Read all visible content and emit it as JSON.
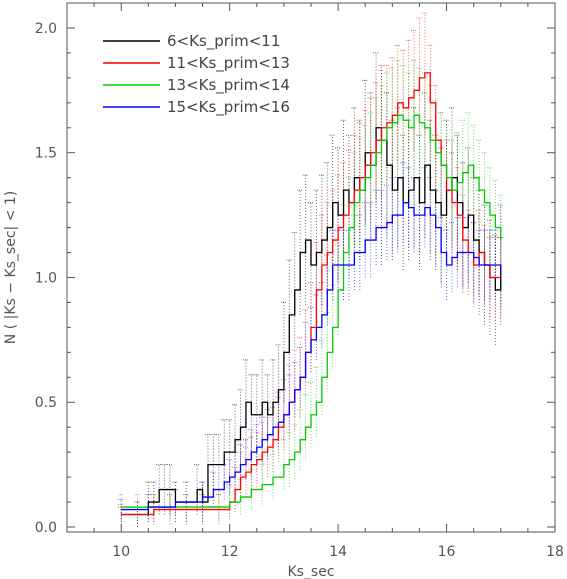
{
  "chart_data": {
    "type": "line",
    "title": "",
    "xlabel": "Ks_sec",
    "ylabel": "N ( |Ks − Ks_sec| < 1)",
    "xlim": [
      9,
      18
    ],
    "ylim": [
      -0.02,
      2.1
    ],
    "xticks": [
      10,
      12,
      14,
      16,
      18
    ],
    "xtick_labels": [
      "10",
      "12",
      "14",
      "16",
      "18"
    ],
    "yticks": [
      0.0,
      0.5,
      1.0,
      1.5,
      2.0
    ],
    "ytick_labels": [
      "0.0",
      "0.5",
      "1.0",
      "1.5",
      "2.0"
    ],
    "grid": false,
    "legend_position": "top-left",
    "error_bars": "dotted vertical bars",
    "series": [
      {
        "name": "6<Ks_prim<11",
        "color": "#000000",
        "x": [
          10.0,
          10.3,
          10.5,
          10.6,
          10.7,
          10.8,
          10.9,
          11.0,
          11.2,
          11.4,
          11.5,
          11.6,
          11.7,
          11.8,
          11.9,
          12.0,
          12.1,
          12.2,
          12.3,
          12.4,
          12.5,
          12.6,
          12.7,
          12.8,
          12.9,
          13.0,
          13.1,
          13.2,
          13.3,
          13.4,
          13.5,
          13.6,
          13.7,
          13.8,
          13.9,
          14.0,
          14.1,
          14.2,
          14.3,
          14.4,
          14.5,
          14.6,
          14.7,
          14.8,
          14.9,
          15.0,
          15.1,
          15.2,
          15.3,
          15.4,
          15.5,
          15.6,
          15.7,
          15.8,
          15.9,
          16.0,
          16.1,
          16.2,
          16.3,
          16.4,
          16.5,
          16.6,
          16.7,
          16.8,
          16.9,
          17.0
        ],
        "values": [
          0.05,
          0.05,
          0.1,
          0.1,
          0.15,
          0.15,
          0.15,
          0.1,
          0.1,
          0.15,
          0.1,
          0.25,
          0.25,
          0.25,
          0.3,
          0.3,
          0.35,
          0.4,
          0.5,
          0.45,
          0.45,
          0.5,
          0.45,
          0.5,
          0.55,
          0.7,
          0.85,
          0.95,
          1.1,
          1.15,
          1.05,
          1.1,
          1.15,
          1.2,
          1.3,
          1.25,
          1.35,
          1.3,
          1.4,
          1.35,
          1.5,
          1.45,
          1.6,
          1.55,
          1.45,
          1.35,
          1.4,
          1.3,
          1.35,
          1.4,
          1.3,
          1.45,
          1.35,
          1.3,
          1.25,
          1.35,
          1.4,
          1.3,
          1.2,
          1.25,
          1.15,
          1.1,
          1.05,
          1.0,
          0.95,
          1.05
        ],
        "errors": [
          0.03,
          0.05,
          0.08,
          0.08,
          0.1,
          0.1,
          0.1,
          0.08,
          0.08,
          0.1,
          0.08,
          0.12,
          0.12,
          0.12,
          0.13,
          0.13,
          0.14,
          0.15,
          0.17,
          0.16,
          0.16,
          0.17,
          0.16,
          0.17,
          0.18,
          0.2,
          0.22,
          0.23,
          0.25,
          0.26,
          0.25,
          0.25,
          0.26,
          0.26,
          0.27,
          0.27,
          0.28,
          0.27,
          0.28,
          0.28,
          0.29,
          0.29,
          0.3,
          0.3,
          0.29,
          0.28,
          0.28,
          0.27,
          0.28,
          0.28,
          0.27,
          0.29,
          0.28,
          0.27,
          0.27,
          0.28,
          0.28,
          0.27,
          0.26,
          0.27,
          0.25,
          0.25,
          0.24,
          0.23,
          0.22,
          0.24
        ]
      },
      {
        "name": "11<Ks_prim<13",
        "color": "#ff0000",
        "x": [
          10.0,
          10.3,
          10.6,
          10.9,
          11.2,
          11.5,
          11.8,
          12.0,
          12.1,
          12.2,
          12.3,
          12.4,
          12.5,
          12.6,
          12.7,
          12.8,
          12.9,
          13.0,
          13.1,
          13.2,
          13.3,
          13.4,
          13.5,
          13.6,
          13.7,
          13.8,
          13.9,
          14.0,
          14.1,
          14.2,
          14.3,
          14.4,
          14.5,
          14.6,
          14.7,
          14.8,
          14.9,
          15.0,
          15.1,
          15.2,
          15.3,
          15.4,
          15.5,
          15.6,
          15.7,
          15.8,
          15.9,
          16.0,
          16.1,
          16.2,
          16.3,
          16.4,
          16.5,
          16.6,
          16.7,
          16.8,
          16.9,
          17.0
        ],
        "values": [
          0.05,
          0.05,
          0.07,
          0.07,
          0.07,
          0.07,
          0.07,
          0.1,
          0.15,
          0.2,
          0.22,
          0.25,
          0.27,
          0.3,
          0.32,
          0.35,
          0.4,
          0.45,
          0.5,
          0.55,
          0.6,
          0.7,
          0.8,
          0.95,
          1.05,
          1.1,
          1.15,
          1.2,
          1.25,
          1.3,
          1.35,
          1.4,
          1.45,
          1.5,
          1.55,
          1.6,
          1.62,
          1.65,
          1.7,
          1.68,
          1.72,
          1.75,
          1.8,
          1.82,
          1.7,
          1.55,
          1.45,
          1.35,
          1.3,
          1.25,
          1.15,
          1.1,
          1.05,
          1.1,
          1.05,
          1.0,
          1.0,
          1.0
        ],
        "errors": [
          0.04,
          0.05,
          0.06,
          0.06,
          0.06,
          0.06,
          0.06,
          0.07,
          0.09,
          0.1,
          0.1,
          0.11,
          0.11,
          0.12,
          0.12,
          0.13,
          0.14,
          0.14,
          0.15,
          0.16,
          0.16,
          0.17,
          0.18,
          0.19,
          0.2,
          0.2,
          0.2,
          0.21,
          0.21,
          0.21,
          0.22,
          0.22,
          0.22,
          0.22,
          0.23,
          0.23,
          0.23,
          0.23,
          0.23,
          0.23,
          0.23,
          0.24,
          0.24,
          0.24,
          0.23,
          0.22,
          0.21,
          0.2,
          0.2,
          0.19,
          0.18,
          0.17,
          0.17,
          0.17,
          0.16,
          0.16,
          0.16,
          0.16
        ]
      },
      {
        "name": "13<Ks_prim<14",
        "color": "#00cc00",
        "x": [
          10.0,
          10.3,
          10.6,
          10.9,
          11.2,
          11.5,
          11.8,
          12.0,
          12.2,
          12.4,
          12.6,
          12.8,
          13.0,
          13.1,
          13.2,
          13.3,
          13.4,
          13.5,
          13.6,
          13.7,
          13.8,
          13.9,
          14.0,
          14.1,
          14.2,
          14.3,
          14.4,
          14.5,
          14.6,
          14.7,
          14.8,
          14.9,
          15.0,
          15.1,
          15.2,
          15.3,
          15.4,
          15.5,
          15.6,
          15.7,
          15.8,
          15.9,
          16.0,
          16.1,
          16.2,
          16.3,
          16.4,
          16.5,
          16.6,
          16.7,
          16.8,
          16.9,
          17.0
        ],
        "values": [
          0.08,
          0.08,
          0.08,
          0.08,
          0.08,
          0.08,
          0.08,
          0.1,
          0.12,
          0.15,
          0.17,
          0.2,
          0.25,
          0.27,
          0.3,
          0.35,
          0.4,
          0.45,
          0.5,
          0.6,
          0.7,
          0.8,
          0.95,
          1.1,
          1.2,
          1.3,
          1.35,
          1.4,
          1.45,
          1.5,
          1.55,
          1.6,
          1.62,
          1.65,
          1.63,
          1.6,
          1.65,
          1.62,
          1.6,
          1.55,
          1.5,
          1.45,
          1.4,
          1.35,
          1.38,
          1.42,
          1.45,
          1.4,
          1.35,
          1.3,
          1.25,
          1.2,
          1.15
        ],
        "errors": [
          0.05,
          0.05,
          0.05,
          0.05,
          0.05,
          0.05,
          0.05,
          0.06,
          0.07,
          0.08,
          0.08,
          0.09,
          0.1,
          0.11,
          0.11,
          0.12,
          0.13,
          0.13,
          0.14,
          0.15,
          0.16,
          0.17,
          0.18,
          0.19,
          0.2,
          0.2,
          0.21,
          0.21,
          0.21,
          0.22,
          0.22,
          0.22,
          0.22,
          0.22,
          0.22,
          0.22,
          0.22,
          0.22,
          0.22,
          0.22,
          0.21,
          0.21,
          0.21,
          0.2,
          0.2,
          0.21,
          0.21,
          0.21,
          0.2,
          0.2,
          0.19,
          0.19,
          0.18
        ]
      },
      {
        "name": "15<Ks_prim<16",
        "color": "#0000ff",
        "x": [
          10.0,
          10.5,
          11.0,
          11.5,
          11.7,
          11.9,
          12.0,
          12.1,
          12.2,
          12.3,
          12.4,
          12.5,
          12.6,
          12.7,
          12.8,
          12.9,
          13.0,
          13.1,
          13.2,
          13.3,
          13.4,
          13.5,
          13.6,
          13.7,
          13.8,
          13.9,
          14.0,
          14.1,
          14.2,
          14.3,
          14.4,
          14.5,
          14.6,
          14.7,
          14.8,
          14.9,
          15.0,
          15.1,
          15.2,
          15.3,
          15.4,
          15.5,
          15.6,
          15.7,
          15.8,
          15.9,
          16.0,
          16.1,
          16.2,
          16.3,
          16.4,
          16.5,
          16.6,
          16.7,
          16.8,
          16.9,
          17.0
        ],
        "values": [
          0.07,
          0.08,
          0.1,
          0.12,
          0.15,
          0.18,
          0.2,
          0.22,
          0.25,
          0.27,
          0.3,
          0.32,
          0.35,
          0.37,
          0.4,
          0.42,
          0.45,
          0.5,
          0.55,
          0.6,
          0.7,
          0.75,
          0.8,
          0.85,
          0.95,
          1.05,
          1.05,
          1.05,
          1.05,
          1.1,
          1.1,
          1.15,
          1.15,
          1.2,
          1.2,
          1.22,
          1.25,
          1.25,
          1.3,
          1.28,
          1.25,
          1.25,
          1.28,
          1.25,
          1.2,
          1.1,
          1.05,
          1.08,
          1.1,
          1.1,
          1.1,
          1.08,
          1.05,
          1.05,
          1.05,
          1.05,
          1.02
        ],
        "errors": [
          0.04,
          0.05,
          0.05,
          0.06,
          0.07,
          0.07,
          0.07,
          0.08,
          0.08,
          0.08,
          0.09,
          0.09,
          0.09,
          0.1,
          0.1,
          0.1,
          0.1,
          0.11,
          0.11,
          0.12,
          0.12,
          0.13,
          0.13,
          0.13,
          0.14,
          0.14,
          0.14,
          0.14,
          0.14,
          0.15,
          0.15,
          0.15,
          0.15,
          0.15,
          0.15,
          0.15,
          0.15,
          0.15,
          0.16,
          0.16,
          0.15,
          0.15,
          0.16,
          0.15,
          0.15,
          0.14,
          0.14,
          0.14,
          0.14,
          0.14,
          0.14,
          0.14,
          0.14,
          0.14,
          0.14,
          0.14,
          0.14
        ]
      }
    ]
  }
}
